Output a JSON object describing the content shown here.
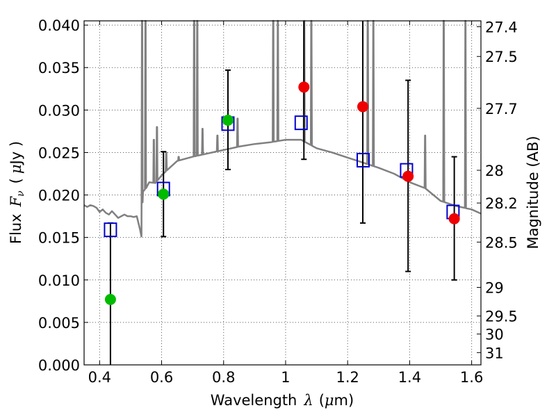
{
  "chart_data": {
    "type": "scatter",
    "xlabel_text": "Wavelength",
    "xlabel_symbol": "λ",
    "xlabel_unit_open": "(",
    "xlabel_unit_mu": "μ",
    "xlabel_unit_rest": "m)",
    "ylabel_text": "Flux",
    "ylabel_symbol": "F",
    "ylabel_symbol_sub": "ν",
    "ylabel_unit_open": "(",
    "ylabel_unit_mu": "μ",
    "ylabel_unit_rest": "Jy )",
    "y2label": "Magnitude (AB)",
    "xlim": [
      0.35,
      1.63
    ],
    "ylim": [
      0.0,
      0.0405
    ],
    "grid": true,
    "x_ticks": [
      {
        "value": 0.4,
        "label": "0.4"
      },
      {
        "value": 0.6,
        "label": "0.6"
      },
      {
        "value": 0.8,
        "label": "0.8"
      },
      {
        "value": 1.0,
        "label": "1"
      },
      {
        "value": 1.2,
        "label": "1.2"
      },
      {
        "value": 1.4,
        "label": "1.4"
      },
      {
        "value": 1.6,
        "label": "1.6"
      }
    ],
    "y_ticks": [
      {
        "value": 0.0,
        "label": "0.000"
      },
      {
        "value": 0.005,
        "label": "0.005"
      },
      {
        "value": 0.01,
        "label": "0.010"
      },
      {
        "value": 0.015,
        "label": "0.015"
      },
      {
        "value": 0.02,
        "label": "0.020"
      },
      {
        "value": 0.025,
        "label": "0.025"
      },
      {
        "value": 0.03,
        "label": "0.030"
      },
      {
        "value": 0.035,
        "label": "0.035"
      },
      {
        "value": 0.04,
        "label": "0.040"
      }
    ],
    "y2_ticks": [
      {
        "value": 27.4,
        "label": "27.4"
      },
      {
        "value": 27.5,
        "label": "27.5"
      },
      {
        "value": 27.7,
        "label": "27.7"
      },
      {
        "value": 28.0,
        "label": "28"
      },
      {
        "value": 28.2,
        "label": "28.2"
      },
      {
        "value": 28.5,
        "label": "28.5"
      },
      {
        "value": 29.0,
        "label": "29"
      },
      {
        "value": 29.5,
        "label": "29.5"
      },
      {
        "value": 30.0,
        "label": "30"
      },
      {
        "value": 31.0,
        "label": "31"
      }
    ],
    "colors": {
      "model": "#808080",
      "model_photometry": "#0000cc",
      "detected": "#00bb00",
      "upper_limit": "#ee0000",
      "errorbar": "#000000",
      "grid": "#555555"
    },
    "model_spectrum": {
      "x": [
        0.35,
        0.36,
        0.37,
        0.38,
        0.39,
        0.4,
        0.41,
        0.42,
        0.43,
        0.44,
        0.45,
        0.46,
        0.47,
        0.48,
        0.49,
        0.5,
        0.51,
        0.52,
        0.53,
        0.535,
        0.54,
        0.55,
        0.56,
        0.58,
        0.6,
        0.62,
        0.65,
        0.7,
        0.75,
        0.8,
        0.85,
        0.9,
        0.95,
        1.0,
        1.05,
        1.1,
        1.15,
        1.2,
        1.25,
        1.3,
        1.35,
        1.4,
        1.45,
        1.5,
        1.55,
        1.6,
        1.63
      ],
      "y": [
        0.0188,
        0.0186,
        0.0188,
        0.0187,
        0.0185,
        0.018,
        0.0183,
        0.0179,
        0.0177,
        0.0181,
        0.0177,
        0.0173,
        0.0175,
        0.0177,
        0.0175,
        0.0175,
        0.0174,
        0.0175,
        0.016,
        0.0151,
        0.0204,
        0.0208,
        0.0215,
        0.0214,
        0.0223,
        0.023,
        0.024,
        0.0245,
        0.0249,
        0.0253,
        0.0257,
        0.026,
        0.0262,
        0.0265,
        0.0265,
        0.0255,
        0.025,
        0.0244,
        0.0238,
        0.0232,
        0.0225,
        0.0215,
        0.0208,
        0.0193,
        0.0187,
        0.0183,
        0.0178
      ]
    },
    "emission_lines": [
      {
        "x": 0.537,
        "peak": 0.0405
      },
      {
        "x": 0.548,
        "peak": 0.0405
      },
      {
        "x": 0.575,
        "peak": 0.0265
      },
      {
        "x": 0.585,
        "peak": 0.028
      },
      {
        "x": 0.615,
        "peak": 0.025
      },
      {
        "x": 0.655,
        "peak": 0.0245
      },
      {
        "x": 0.705,
        "peak": 0.0405
      },
      {
        "x": 0.715,
        "peak": 0.0405
      },
      {
        "x": 0.732,
        "peak": 0.0278
      },
      {
        "x": 0.78,
        "peak": 0.027
      },
      {
        "x": 0.845,
        "peak": 0.029
      },
      {
        "x": 0.96,
        "peak": 0.0405
      },
      {
        "x": 0.975,
        "peak": 0.0405
      },
      {
        "x": 1.06,
        "peak": 0.0405
      },
      {
        "x": 1.083,
        "peak": 0.0405
      },
      {
        "x": 1.265,
        "peak": 0.0405
      },
      {
        "x": 1.283,
        "peak": 0.0405
      },
      {
        "x": 1.45,
        "peak": 0.027
      },
      {
        "x": 1.51,
        "peak": 0.0405
      },
      {
        "x": 1.58,
        "peak": 0.0405
      }
    ],
    "model_photometry": [
      {
        "x": 0.435,
        "y": 0.0159
      },
      {
        "x": 0.606,
        "y": 0.0207
      },
      {
        "x": 0.814,
        "y": 0.0284
      },
      {
        "x": 1.05,
        "y": 0.0285
      },
      {
        "x": 1.25,
        "y": 0.0241
      },
      {
        "x": 1.39,
        "y": 0.0229
      },
      {
        "x": 1.54,
        "y": 0.018
      }
    ],
    "detections": [
      {
        "x": 0.435,
        "y": 0.0077,
        "err_lo": 0.0,
        "err_hi": 0.0167
      },
      {
        "x": 0.606,
        "y": 0.0201,
        "err_lo": 0.0151,
        "err_hi": 0.0251
      },
      {
        "x": 0.814,
        "y": 0.0288,
        "err_lo": 0.023,
        "err_hi": 0.0347
      }
    ],
    "red_points": [
      {
        "x": 1.059,
        "y": 0.0327,
        "err_lo": 0.0242,
        "err_hi": 0.0405
      },
      {
        "x": 1.249,
        "y": 0.0304,
        "err_lo": 0.0167,
        "err_hi": 0.0405
      },
      {
        "x": 1.395,
        "y": 0.0222,
        "err_lo": 0.011,
        "err_hi": 0.0335
      },
      {
        "x": 1.544,
        "y": 0.0172,
        "err_lo": 0.01,
        "err_hi": 0.0245
      }
    ]
  }
}
